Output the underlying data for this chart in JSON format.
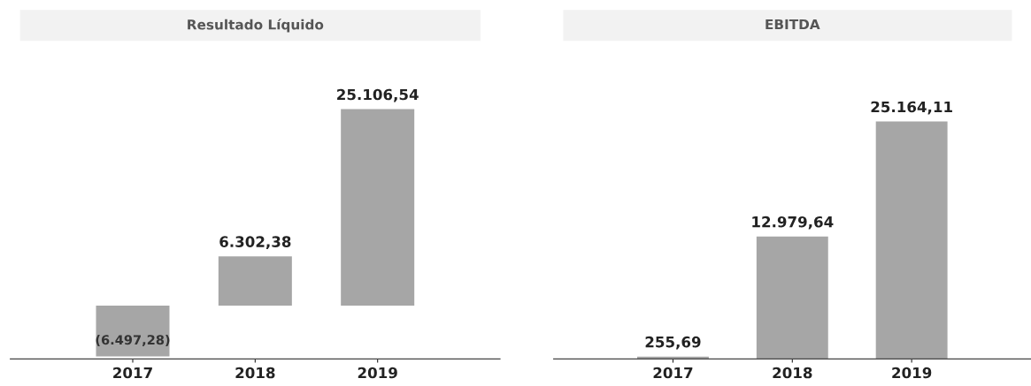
{
  "chart_data": [
    {
      "type": "bar",
      "title": "Resultado Líquido",
      "categories": [
        "2017",
        "2018",
        "2019"
      ],
      "values": [
        -6497.28,
        6302.38,
        25106.54
      ],
      "value_labels": [
        "(6.497,28)",
        "6.302,38",
        "25.106,54"
      ],
      "color": "#a6a6a6"
    },
    {
      "type": "bar",
      "title": "EBITDA",
      "categories": [
        "2017",
        "2018",
        "2019"
      ],
      "values": [
        255.69,
        12979.64,
        25164.11
      ],
      "value_labels": [
        "255,69",
        "12.979,64",
        "25.164,11"
      ],
      "color": "#a6a6a6"
    }
  ]
}
